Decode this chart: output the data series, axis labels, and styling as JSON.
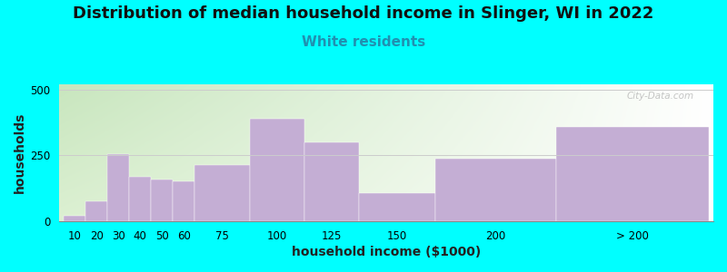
{
  "title": "Distribution of median household income in Slinger, WI in 2022",
  "subtitle": "White residents",
  "xlabel": "household income ($1000)",
  "ylabel": "households",
  "background_color": "#00FFFF",
  "bar_color": "#c4aed4",
  "watermark": "City-Data.com",
  "categories": [
    "10",
    "20",
    "30",
    "40",
    "50",
    "60",
    "75",
    "100",
    "125",
    "150",
    "200",
    "> 200"
  ],
  "values": [
    22,
    75,
    255,
    168,
    158,
    152,
    215,
    388,
    300,
    108,
    238,
    358
  ],
  "bar_lefts": [
    5,
    15,
    25,
    35,
    45,
    55,
    65,
    90,
    115,
    140,
    175,
    230
  ],
  "bar_widths": [
    10,
    10,
    10,
    10,
    10,
    10,
    25,
    25,
    25,
    35,
    55,
    70
  ],
  "ylim": [
    0,
    520
  ],
  "yticks": [
    0,
    250,
    500
  ],
  "title_fontsize": 13,
  "subtitle_fontsize": 11,
  "subtitle_color": "#2090b0",
  "axis_label_fontsize": 10,
  "tick_fontsize": 8.5
}
